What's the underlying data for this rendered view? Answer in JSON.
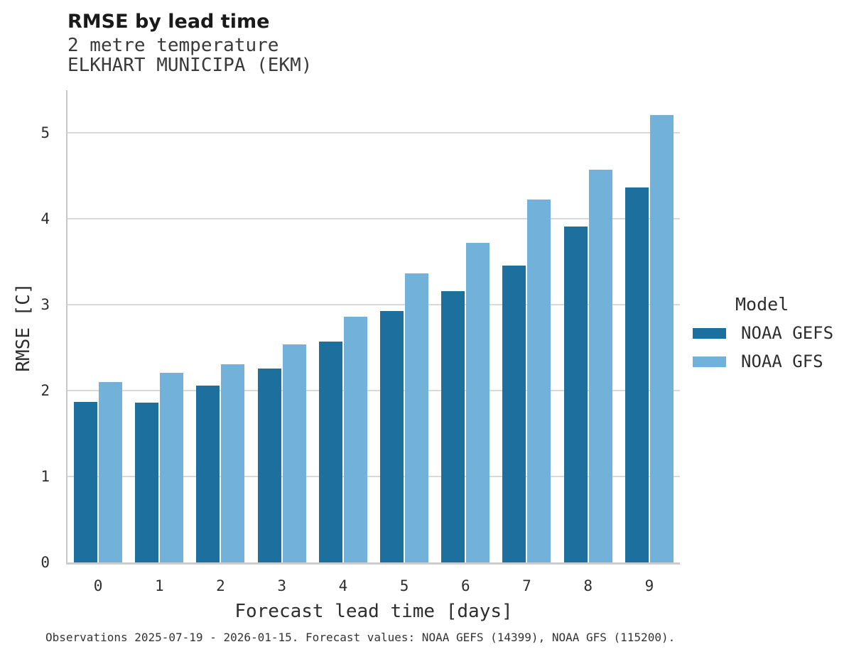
{
  "header": {
    "title": "RMSE by lead time",
    "subtitle_line1": "2 metre temperature",
    "subtitle_line2": "ELKHART MUNICIPA (EKM)"
  },
  "chart_data": {
    "type": "bar",
    "title": "RMSE by lead time",
    "subtitle": [
      "2 metre temperature",
      "ELKHART MUNICIPA (EKM)"
    ],
    "categories": [
      "0",
      "1",
      "2",
      "3",
      "4",
      "5",
      "6",
      "7",
      "8",
      "9"
    ],
    "series": [
      {
        "name": "NOAA GEFS",
        "color": "#1d6f9e",
        "values": [
          1.87,
          1.86,
          2.06,
          2.26,
          2.57,
          2.93,
          3.16,
          3.46,
          3.91,
          4.37
        ]
      },
      {
        "name": "NOAA GFS",
        "color": "#71b1da",
        "values": [
          2.1,
          2.21,
          2.31,
          2.54,
          2.86,
          3.37,
          3.72,
          4.23,
          4.57,
          5.21
        ]
      }
    ],
    "xlabel": "Forecast lead time [days]",
    "ylabel": "RMSE [C]",
    "ylim": [
      0,
      5.5
    ],
    "yticks": [
      0,
      1,
      2,
      3,
      4,
      5
    ],
    "grid": "horizontal",
    "legend_title": "Model",
    "legend_position": "right"
  },
  "legend": {
    "title": "Model",
    "items": [
      {
        "label": "NOAA GEFS",
        "color": "#1d6f9e"
      },
      {
        "label": "NOAA GFS",
        "color": "#71b1da"
      }
    ]
  },
  "footer": {
    "caption": "Observations 2025-07-19 - 2026-01-15. Forecast values: NOAA GEFS (14399), NOAA GFS (115200)."
  },
  "colors": {
    "grid": "#d9d9d9",
    "spine": "#c9c9c9",
    "title_text": "#1a1a1a",
    "body_text": "#2e2e2e"
  }
}
